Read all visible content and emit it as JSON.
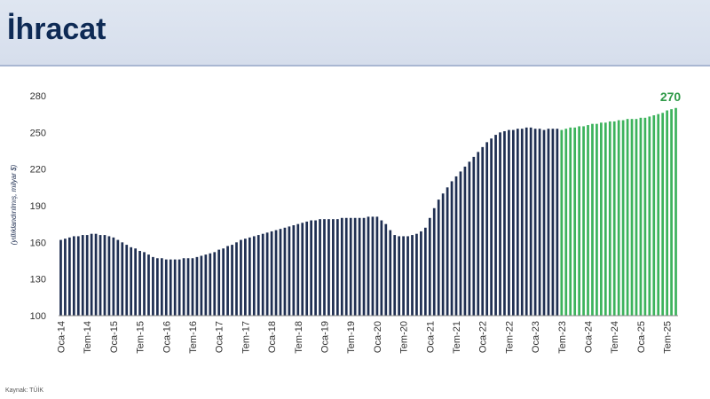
{
  "page": {
    "title": "İhracat",
    "source": "Kaynak: TÜİK"
  },
  "chart_data": {
    "type": "bar",
    "ylabel": "(yıllıklandırılmış, milyar $)",
    "ylim": [
      100,
      280
    ],
    "yticks": [
      100,
      130,
      160,
      190,
      220,
      250,
      280
    ],
    "grid": false,
    "colors": {
      "actual": "#1f2f52",
      "forecast": "#3cb35c",
      "forecast_label": "#2f9a48"
    },
    "forecast_start": "2023-07",
    "annotation": {
      "text": "270",
      "x": "2025-09"
    },
    "tick_labels": [
      {
        "x": "2014-01",
        "label": "Oca-14"
      },
      {
        "x": "2014-07",
        "label": "Tem-14"
      },
      {
        "x": "2015-01",
        "label": "Oca-15"
      },
      {
        "x": "2015-07",
        "label": "Tem-15"
      },
      {
        "x": "2016-01",
        "label": "Oca-16"
      },
      {
        "x": "2016-07",
        "label": "Tem-16"
      },
      {
        "x": "2017-01",
        "label": "Oca-17"
      },
      {
        "x": "2017-07",
        "label": "Tem-17"
      },
      {
        "x": "2018-01",
        "label": "Oca-18"
      },
      {
        "x": "2018-07",
        "label": "Tem-18"
      },
      {
        "x": "2019-01",
        "label": "Oca-19"
      },
      {
        "x": "2019-07",
        "label": "Tem-19"
      },
      {
        "x": "2020-01",
        "label": "Oca-20"
      },
      {
        "x": "2020-07",
        "label": "Tem-20"
      },
      {
        "x": "2021-01",
        "label": "Oca-21"
      },
      {
        "x": "2021-07",
        "label": "Tem-21"
      },
      {
        "x": "2022-01",
        "label": "Oca-22"
      },
      {
        "x": "2022-07",
        "label": "Tem-22"
      },
      {
        "x": "2023-01",
        "label": "Oca-23"
      },
      {
        "x": "2023-07",
        "label": "Tem-23"
      },
      {
        "x": "2024-01",
        "label": "Oca-24"
      },
      {
        "x": "2024-07",
        "label": "Tem-24"
      },
      {
        "x": "2025-01",
        "label": "Oca-25"
      },
      {
        "x": "2025-07",
        "label": "Tem-25"
      }
    ],
    "series": [
      {
        "x": [
          "2014-01",
          "2014-02",
          "2014-03",
          "2014-04",
          "2014-05",
          "2014-06",
          "2014-07",
          "2014-08",
          "2014-09",
          "2014-10",
          "2014-11",
          "2014-12",
          "2015-01",
          "2015-02",
          "2015-03",
          "2015-04",
          "2015-05",
          "2015-06",
          "2015-07",
          "2015-08",
          "2015-09",
          "2015-10",
          "2015-11",
          "2015-12",
          "2016-01",
          "2016-02",
          "2016-03",
          "2016-04",
          "2016-05",
          "2016-06",
          "2016-07",
          "2016-08",
          "2016-09",
          "2016-10",
          "2016-11",
          "2016-12",
          "2017-01",
          "2017-02",
          "2017-03",
          "2017-04",
          "2017-05",
          "2017-06",
          "2017-07",
          "2017-08",
          "2017-09",
          "2017-10",
          "2017-11",
          "2017-12",
          "2018-01",
          "2018-02",
          "2018-03",
          "2018-04",
          "2018-05",
          "2018-06",
          "2018-07",
          "2018-08",
          "2018-09",
          "2018-10",
          "2018-11",
          "2018-12",
          "2019-01",
          "2019-02",
          "2019-03",
          "2019-04",
          "2019-05",
          "2019-06",
          "2019-07",
          "2019-08",
          "2019-09",
          "2019-10",
          "2019-11",
          "2019-12",
          "2020-01",
          "2020-02",
          "2020-03",
          "2020-04",
          "2020-05",
          "2020-06",
          "2020-07",
          "2020-08",
          "2020-09",
          "2020-10",
          "2020-11",
          "2020-12",
          "2021-01",
          "2021-02",
          "2021-03",
          "2021-04",
          "2021-05",
          "2021-06",
          "2021-07",
          "2021-08",
          "2021-09",
          "2021-10",
          "2021-11",
          "2021-12",
          "2022-01",
          "2022-02",
          "2022-03",
          "2022-04",
          "2022-05",
          "2022-06",
          "2022-07",
          "2022-08",
          "2022-09",
          "2022-10",
          "2022-11",
          "2022-12",
          "2023-01",
          "2023-02",
          "2023-03",
          "2023-04",
          "2023-05",
          "2023-06",
          "2023-07",
          "2023-08",
          "2023-09",
          "2023-10",
          "2023-11",
          "2023-12",
          "2024-01",
          "2024-02",
          "2024-03",
          "2024-04",
          "2024-05",
          "2024-06",
          "2024-07",
          "2024-08",
          "2024-09",
          "2024-10",
          "2024-11",
          "2024-12",
          "2025-01",
          "2025-02",
          "2025-03",
          "2025-04",
          "2025-05",
          "2025-06",
          "2025-07",
          "2025-08",
          "2025-09"
        ],
        "values": [
          162,
          163,
          164,
          165,
          165,
          166,
          166,
          167,
          167,
          166,
          166,
          165,
          164,
          162,
          160,
          158,
          156,
          155,
          153,
          152,
          150,
          148,
          147,
          147,
          146,
          146,
          146,
          146,
          147,
          147,
          147,
          148,
          149,
          150,
          151,
          152,
          154,
          155,
          157,
          158,
          160,
          162,
          163,
          164,
          165,
          166,
          167,
          168,
          169,
          170,
          171,
          172,
          173,
          174,
          175,
          176,
          177,
          178,
          178,
          179,
          179,
          179,
          179,
          179,
          180,
          180,
          180,
          180,
          180,
          180,
          181,
          181,
          181,
          178,
          175,
          170,
          166,
          165,
          165,
          165,
          166,
          167,
          169,
          172,
          180,
          188,
          195,
          200,
          205,
          210,
          214,
          218,
          222,
          226,
          230,
          234,
          238,
          242,
          245,
          248,
          250,
          251,
          252,
          252,
          253,
          253,
          254,
          254,
          253,
          253,
          252,
          253,
          253,
          253,
          252,
          253,
          254,
          254,
          255,
          255,
          256,
          257,
          257,
          258,
          258,
          259,
          259,
          260,
          260,
          261,
          261,
          261,
          262,
          262,
          263,
          264,
          265,
          266,
          268,
          269,
          270
        ]
      }
    ]
  }
}
